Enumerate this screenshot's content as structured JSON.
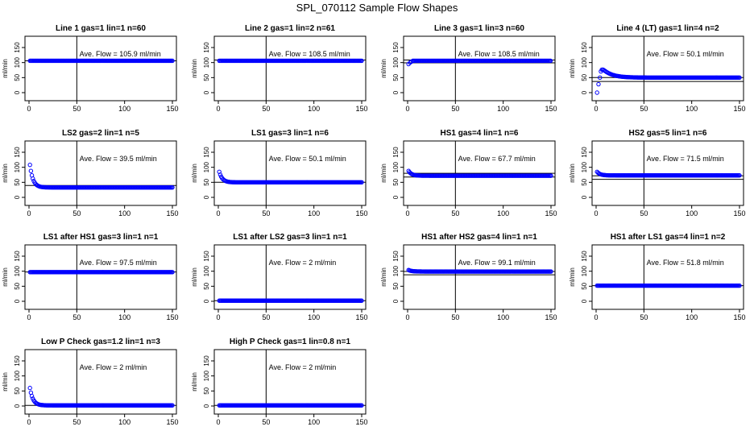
{
  "title": "SPL_070112  Sample Flow Shapes",
  "colors": {
    "points": "#0000ff",
    "axis": "#000000",
    "hline": "#000000",
    "background": "#ffffff"
  },
  "chart_data": [
    {
      "type": "scatter",
      "title": "Line 1 gas=1 lin=1 n=60",
      "xlabel": "",
      "ylabel": "ml/min",
      "xlim": [
        0,
        150
      ],
      "ylim": [
        0,
        150
      ],
      "xticks": [
        "0",
        "50",
        "100",
        "150"
      ],
      "yticks": [
        "0",
        "50",
        "100",
        "150"
      ],
      "annotation": "Ave. Flow =  105.9  ml/min",
      "vline_x": 50,
      "hlines": [
        105.9
      ],
      "series": [
        {
          "name": "flow",
          "shape": "flat",
          "level": 106,
          "peak": null,
          "start_values": []
        }
      ]
    },
    {
      "type": "scatter",
      "title": "Line 2 gas=1 lin=2 n=61",
      "xlabel": "",
      "ylabel": "ml/min",
      "xlim": [
        0,
        150
      ],
      "ylim": [
        0,
        150
      ],
      "xticks": [
        "0",
        "50",
        "100",
        "150"
      ],
      "yticks": [
        "0",
        "50",
        "100",
        "150"
      ],
      "annotation": "Ave. Flow =  108.5  ml/min",
      "vline_x": 50,
      "hlines": [
        108.5
      ],
      "series": [
        {
          "name": "flow",
          "shape": "flat",
          "level": 106,
          "peak": null,
          "start_values": []
        }
      ]
    },
    {
      "type": "scatter",
      "title": "Line 3 gas=1 lin=3 n=60",
      "xlabel": "",
      "ylabel": "ml/min",
      "xlim": [
        0,
        150
      ],
      "ylim": [
        0,
        150
      ],
      "xticks": [
        "0",
        "50",
        "100",
        "150"
      ],
      "yticks": [
        "0",
        "50",
        "100",
        "150"
      ],
      "annotation": "Ave. Flow =  108.5  ml/min",
      "vline_x": 50,
      "hlines": [
        108.5,
        99
      ],
      "series": [
        {
          "name": "flow",
          "shape": "flat",
          "level": 106,
          "peak": null,
          "start_values": [
            95,
            100,
            103
          ]
        }
      ]
    },
    {
      "type": "scatter",
      "title": "Line 4 (LT) gas=1 lin=4 n=2",
      "xlabel": "",
      "ylabel": "ml/min",
      "xlim": [
        0,
        150
      ],
      "ylim": [
        0,
        150
      ],
      "xticks": [
        "0",
        "50",
        "100",
        "150"
      ],
      "yticks": [
        "0",
        "50",
        "100",
        "150"
      ],
      "annotation": "Ave. Flow =  50.1  ml/min",
      "vline_x": 50,
      "hlines": [
        50.1,
        37
      ],
      "series": [
        {
          "name": "flow",
          "shape": "hump",
          "level": 50,
          "peak": 80,
          "start_values": [
            0,
            28
          ]
        }
      ]
    },
    {
      "type": "scatter",
      "title": "LS2 gas=2 lin=1 n=5",
      "xlabel": "",
      "ylabel": "ml/min",
      "xlim": [
        0,
        150
      ],
      "ylim": [
        0,
        150
      ],
      "xticks": [
        "0",
        "50",
        "100",
        "150"
      ],
      "yticks": [
        "0",
        "50",
        "100",
        "150"
      ],
      "annotation": "Ave. Flow =  39.5  ml/min",
      "vline_x": 50,
      "hlines": [
        39.5
      ],
      "series": [
        {
          "name": "flow",
          "shape": "decay",
          "level": 33,
          "peak": 108,
          "start_values": []
        }
      ]
    },
    {
      "type": "scatter",
      "title": "LS1 gas=3 lin=1 n=6",
      "xlabel": "",
      "ylabel": "ml/min",
      "xlim": [
        0,
        150
      ],
      "ylim": [
        0,
        150
      ],
      "xticks": [
        "0",
        "50",
        "100",
        "150"
      ],
      "yticks": [
        "0",
        "50",
        "100",
        "150"
      ],
      "annotation": "Ave. Flow =  50.1  ml/min",
      "vline_x": 50,
      "hlines": [
        50.1
      ],
      "series": [
        {
          "name": "flow",
          "shape": "decay",
          "level": 50,
          "peak": 85,
          "start_values": []
        }
      ]
    },
    {
      "type": "scatter",
      "title": "HS1 gas=4 lin=1 n=6",
      "xlabel": "",
      "ylabel": "ml/min",
      "xlim": [
        0,
        150
      ],
      "ylim": [
        0,
        150
      ],
      "xticks": [
        "0",
        "50",
        "100",
        "150"
      ],
      "yticks": [
        "0",
        "50",
        "100",
        "150"
      ],
      "annotation": "Ave. Flow =  67.7  ml/min",
      "vline_x": 50,
      "hlines": [
        67.7,
        80
      ],
      "series": [
        {
          "name": "flow",
          "shape": "decay",
          "level": 72,
          "peak": 88,
          "start_values": []
        }
      ]
    },
    {
      "type": "scatter",
      "title": "HS2 gas=5 lin=1 n=6",
      "xlabel": "",
      "ylabel": "ml/min",
      "xlim": [
        0,
        150
      ],
      "ylim": [
        0,
        150
      ],
      "xticks": [
        "0",
        "50",
        "100",
        "150"
      ],
      "yticks": [
        "0",
        "50",
        "100",
        "150"
      ],
      "annotation": "Ave. Flow =  71.5  ml/min",
      "vline_x": 50,
      "hlines": [
        71.5,
        60
      ],
      "series": [
        {
          "name": "flow",
          "shape": "decay",
          "level": 73,
          "peak": 85,
          "start_values": []
        }
      ]
    },
    {
      "type": "scatter",
      "title": "LS1 after HS1 gas=3 lin=1 n=1",
      "xlabel": "",
      "ylabel": "ml/min",
      "xlim": [
        0,
        150
      ],
      "ylim": [
        0,
        150
      ],
      "xticks": [
        "0",
        "50",
        "100",
        "150"
      ],
      "yticks": [
        "0",
        "50",
        "100",
        "150"
      ],
      "annotation": "Ave. Flow =  97.5  ml/min",
      "vline_x": 50,
      "hlines": [
        97.5
      ],
      "series": [
        {
          "name": "flow",
          "shape": "flat",
          "level": 97,
          "peak": null,
          "start_values": []
        }
      ]
    },
    {
      "type": "scatter",
      "title": "LS1 after LS2 gas=3 lin=1 n=1",
      "xlabel": "",
      "ylabel": "ml/min",
      "xlim": [
        0,
        150
      ],
      "ylim": [
        0,
        150
      ],
      "xticks": [
        "0",
        "50",
        "100",
        "150"
      ],
      "yticks": [
        "0",
        "50",
        "100",
        "150"
      ],
      "annotation": "Ave. Flow =  2  ml/min",
      "vline_x": 50,
      "hlines": [
        2
      ],
      "series": [
        {
          "name": "flow",
          "shape": "flat",
          "level": 2,
          "peak": null,
          "start_values": []
        }
      ]
    },
    {
      "type": "scatter",
      "title": "HS1 after HS2 gas=4 lin=1 n=1",
      "xlabel": "",
      "ylabel": "ml/min",
      "xlim": [
        0,
        150
      ],
      "ylim": [
        0,
        150
      ],
      "xticks": [
        "0",
        "50",
        "100",
        "150"
      ],
      "yticks": [
        "0",
        "50",
        "100",
        "150"
      ],
      "annotation": "Ave. Flow =  99.1  ml/min",
      "vline_x": 50,
      "hlines": [
        99.1,
        88
      ],
      "series": [
        {
          "name": "flow",
          "shape": "decay",
          "level": 99,
          "peak": 104,
          "start_values": []
        }
      ]
    },
    {
      "type": "scatter",
      "title": "HS1 after LS1 gas=4 lin=1 n=2",
      "xlabel": "",
      "ylabel": "ml/min",
      "xlim": [
        0,
        150
      ],
      "ylim": [
        0,
        150
      ],
      "xticks": [
        "0",
        "50",
        "100",
        "150"
      ],
      "yticks": [
        "0",
        "50",
        "100",
        "150"
      ],
      "annotation": "Ave. Flow =  51.8  ml/min",
      "vline_x": 50,
      "hlines": [
        51.8
      ],
      "series": [
        {
          "name": "flow",
          "shape": "flat",
          "level": 52,
          "peak": null,
          "start_values": []
        }
      ]
    },
    {
      "type": "scatter",
      "title": "Low P Check gas=1.2 lin=1 n=3",
      "xlabel": "",
      "ylabel": "ml/min",
      "xlim": [
        0,
        150
      ],
      "ylim": [
        0,
        150
      ],
      "xticks": [
        "0",
        "50",
        "100",
        "150"
      ],
      "yticks": [
        "0",
        "50",
        "100",
        "150"
      ],
      "annotation": "Ave. Flow =  2  ml/min",
      "vline_x": 50,
      "hlines": [
        2
      ],
      "series": [
        {
          "name": "flow",
          "shape": "decay",
          "level": 2,
          "peak": 60,
          "start_values": []
        }
      ]
    },
    {
      "type": "scatter",
      "title": "High P Check gas=1 lin=0.8 n=1",
      "xlabel": "",
      "ylabel": "ml/min",
      "xlim": [
        0,
        150
      ],
      "ylim": [
        0,
        150
      ],
      "xticks": [
        "0",
        "50",
        "100",
        "150"
      ],
      "yticks": [
        "0",
        "50",
        "100",
        "150"
      ],
      "annotation": "Ave. Flow =  2  ml/min",
      "vline_x": 50,
      "hlines": [
        2
      ],
      "series": [
        {
          "name": "flow",
          "shape": "flat",
          "level": 2,
          "peak": null,
          "start_values": []
        }
      ]
    }
  ]
}
